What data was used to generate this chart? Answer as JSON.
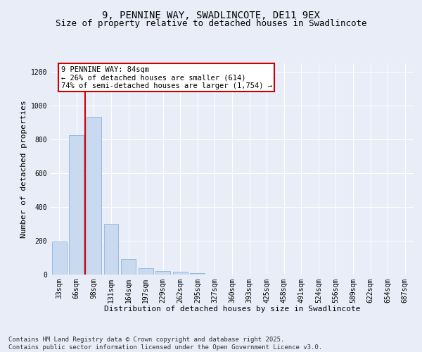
{
  "title_line1": "9, PENNINE WAY, SWADLINCOTE, DE11 9EX",
  "title_line2": "Size of property relative to detached houses in Swadlincote",
  "xlabel": "Distribution of detached houses by size in Swadlincote",
  "ylabel": "Number of detached properties",
  "categories": [
    "33sqm",
    "66sqm",
    "98sqm",
    "131sqm",
    "164sqm",
    "197sqm",
    "229sqm",
    "262sqm",
    "295sqm",
    "327sqm",
    "360sqm",
    "393sqm",
    "425sqm",
    "458sqm",
    "491sqm",
    "524sqm",
    "556sqm",
    "589sqm",
    "622sqm",
    "654sqm",
    "687sqm"
  ],
  "values": [
    195,
    825,
    935,
    300,
    90,
    38,
    20,
    15,
    10,
    0,
    0,
    0,
    0,
    0,
    0,
    0,
    0,
    0,
    0,
    0,
    0
  ],
  "bar_color": "#c8d9f0",
  "bar_edgecolor": "#7badd6",
  "vline_x": 1.5,
  "vline_color": "#cc0000",
  "annotation_text": "9 PENNINE WAY: 84sqm\n← 26% of detached houses are smaller (614)\n74% of semi-detached houses are larger (1,754) →",
  "annotation_box_color": "#cc0000",
  "annotation_text_color": "#000000",
  "ylim": [
    0,
    1250
  ],
  "yticks": [
    0,
    200,
    400,
    600,
    800,
    1000,
    1200
  ],
  "footer_line1": "Contains HM Land Registry data © Crown copyright and database right 2025.",
  "footer_line2": "Contains public sector information licensed under the Open Government Licence v3.0.",
  "bg_color": "#e8edf8",
  "plot_bg_color": "#e8edf8",
  "grid_color": "#ffffff",
  "title_fontsize": 10,
  "subtitle_fontsize": 9,
  "axis_label_fontsize": 8,
  "tick_fontsize": 7,
  "annotation_fontsize": 7.5,
  "footer_fontsize": 6.5
}
